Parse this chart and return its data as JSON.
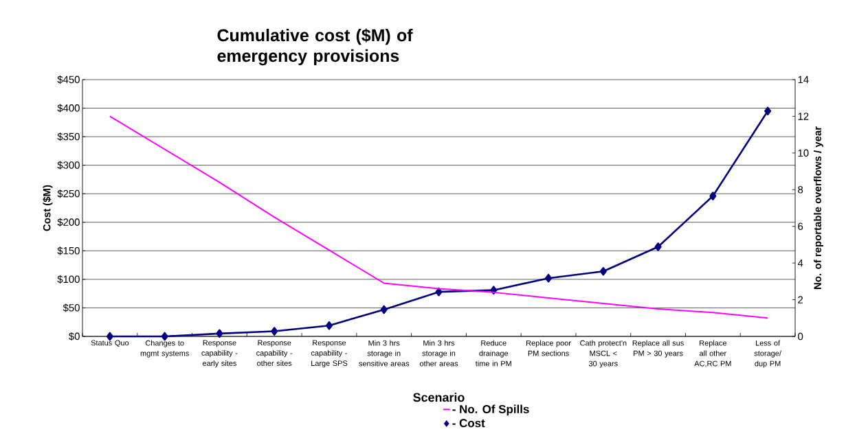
{
  "chart_data": {
    "type": "line",
    "title": "Cumulative cost ($M) of emergency provisions",
    "xlabel": "Scenario",
    "ylabel": "Cost ($M)",
    "y2label": "No. of reportable overflows / year",
    "categories": [
      "Status Quo",
      "Changes to mgmt systems",
      "Response capability - early sites",
      "Response capability - other sites",
      "Response capability - Large SPS",
      "Min 3 hrs storage in sensitive areas",
      "Min 3 hrs storage in other areas",
      "Reduce drainage time in PM",
      "Replace poor PM sections",
      "Cath protect'n MSCL < 30 years",
      "Replace all sus PM > 30 years",
      "Replace all other AC,RC PM",
      "Less of storage/ dup PM"
    ],
    "series": [
      {
        "name": "- No. Of Spills",
        "color": "#ff00ff",
        "axis": "y2",
        "marker": "none",
        "values": [
          12,
          10.2,
          8.4,
          6.5,
          4.7,
          2.9,
          2.6,
          2.4,
          2.1,
          1.8,
          1.5,
          1.3,
          1.0
        ]
      },
      {
        "name": "- Cost",
        "color": "#000080",
        "marker": "diamond",
        "values": [
          0,
          0,
          5,
          9,
          19,
          47,
          78,
          81,
          102,
          114,
          157,
          246,
          395
        ]
      }
    ],
    "ylim": [
      0,
      450
    ],
    "yticks": [
      {
        "value": 0,
        "label": "$0"
      },
      {
        "value": 50,
        "label": "$50"
      },
      {
        "value": 100,
        "label": "$100"
      },
      {
        "value": 150,
        "label": "$150"
      },
      {
        "value": 200,
        "label": "$200"
      },
      {
        "value": 250,
        "label": "$250"
      },
      {
        "value": 300,
        "label": "$300"
      },
      {
        "value": 350,
        "label": "$350"
      },
      {
        "value": 400,
        "label": "$400"
      },
      {
        "value": 450,
        "label": "$450"
      }
    ],
    "y2lim": [
      0,
      14
    ],
    "y2ticks": [
      0,
      2,
      4,
      6,
      8,
      10,
      12,
      14
    ],
    "grid": "y",
    "legend": "bottom"
  }
}
